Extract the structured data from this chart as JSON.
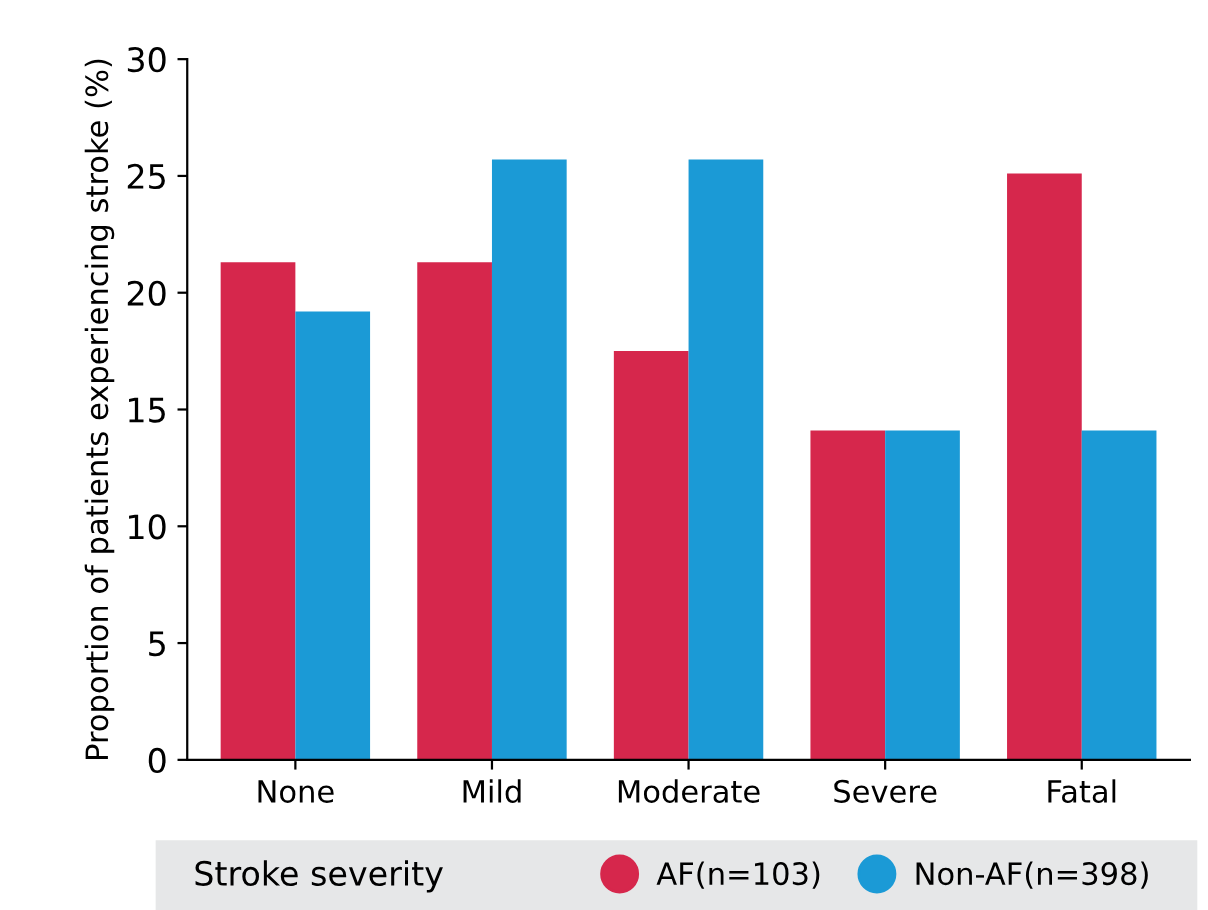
{
  "chart_data": {
    "type": "bar",
    "xlabel": "Stroke severity",
    "ylabel": "Proportion of patients experiencing stroke (%)",
    "categories": [
      "None",
      "Mild",
      "Moderate",
      "Severe",
      "Fatal"
    ],
    "series": [
      {
        "name": "AF(n=103)",
        "color": "#d6274c",
        "values": [
          21.3,
          21.3,
          17.5,
          14.1,
          25.1
        ]
      },
      {
        "name": "Non-AF(n=398)",
        "color": "#1b9ad6",
        "values": [
          19.2,
          25.7,
          25.7,
          14.1,
          14.1
        ]
      }
    ],
    "ylim": [
      0,
      30
    ],
    "yticks": [
      0,
      5,
      10,
      15,
      20,
      25,
      30
    ],
    "grid": false,
    "legend": "bottom",
    "marker": "circle"
  }
}
